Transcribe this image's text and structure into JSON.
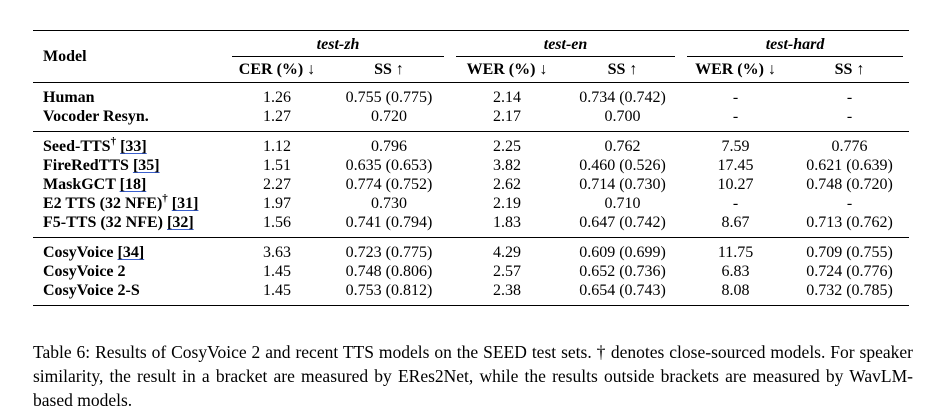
{
  "table": {
    "model_header": "Model",
    "groups": [
      "test-zh",
      "test-en",
      "test-hard"
    ],
    "subheaders": [
      "CER (%) ↓",
      "SS ↑",
      "WER (%) ↓",
      "SS ↑",
      "WER (%) ↓",
      "SS ↑"
    ],
    "sections": [
      {
        "rows": [
          {
            "model": "Human",
            "ref": "",
            "dagger": "",
            "cells": [
              "1.26",
              "0.755 (0.775)",
              "2.14",
              "0.734 (0.742)",
              "-",
              "-"
            ]
          },
          {
            "model": "Vocoder Resyn.",
            "ref": "",
            "dagger": "",
            "cells": [
              "1.27",
              "0.720",
              "2.17",
              "0.700",
              "-",
              "-"
            ]
          }
        ]
      },
      {
        "rows": [
          {
            "model": "Seed-TTS",
            "ref": "[33]",
            "dagger": "†",
            "cells": [
              "1.12",
              "0.796",
              "2.25",
              "0.762",
              "7.59",
              "0.776"
            ]
          },
          {
            "model": "FireRedTTS",
            "ref": "[35]",
            "dagger": "",
            "cells": [
              "1.51",
              "0.635 (0.653)",
              "3.82",
              "0.460 (0.526)",
              "17.45",
              "0.621 (0.639)"
            ]
          },
          {
            "model": "MaskGCT",
            "ref": "[18]",
            "dagger": "",
            "cells": [
              "2.27",
              "0.774 (0.752)",
              "2.62",
              "0.714 (0.730)",
              "10.27",
              "0.748 (0.720)"
            ]
          },
          {
            "model": "E2 TTS (32 NFE)",
            "ref": "[31]",
            "dagger": "†",
            "cells": [
              "1.97",
              "0.730",
              "2.19",
              "0.710",
              "-",
              "-"
            ]
          },
          {
            "model": "F5-TTS (32 NFE)",
            "ref": "[32]",
            "dagger": "",
            "cells": [
              "1.56",
              "0.741 (0.794)",
              "1.83",
              "0.647 (0.742)",
              "8.67",
              "0.713 (0.762)"
            ]
          }
        ]
      },
      {
        "rows": [
          {
            "model": "CosyVoice",
            "ref": "[34]",
            "dagger": "",
            "cells": [
              "3.63",
              "0.723 (0.775)",
              "4.29",
              "0.609 (0.699)",
              "11.75",
              "0.709 (0.755)"
            ]
          },
          {
            "model": "CosyVoice 2",
            "ref": "",
            "dagger": "",
            "cells": [
              "1.45",
              "0.748 (0.806)",
              "2.57",
              "0.652 (0.736)",
              "6.83",
              "0.724 (0.776)"
            ]
          },
          {
            "model": "CosyVoice 2-S",
            "ref": "",
            "dagger": "",
            "cells": [
              "1.45",
              "0.753 (0.812)",
              "2.38",
              "0.654 (0.743)",
              "8.08",
              "0.732 (0.785)"
            ]
          }
        ]
      }
    ]
  },
  "caption": "Table 6: Results of CosyVoice 2 and recent TTS models on the SEED test sets. † denotes close-sourced models. For speaker similarity, the result in a bracket are measured by ERes2Net, while the results outside brackets are measured by WavLM-based models."
}
